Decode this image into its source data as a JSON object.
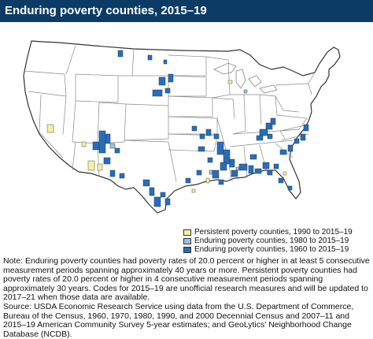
{
  "title": "Enduring poverty counties, 2015–19",
  "legend": {
    "items": [
      {
        "label": "Persistent poverty counties, 1990 to 2015–19",
        "color": "#f2f2a0"
      },
      {
        "label": "Enduring poverty counties, 1980 to 2015–19",
        "color": "#9dbfe0"
      },
      {
        "label": "Enduring poverty counties, 1960 to 2015–19",
        "color": "#2a6db5"
      }
    ]
  },
  "note": {
    "paragraph": "Note: Enduring poverty counties had poverty rates of 20.0 percent or higher in at least 5 consecutive measurement periods spanning approximately 40 years or more. Persistent poverty counties had poverty rates of 20.0 percent or higher in 4 consecutive measurement periods spanning approximately 30 years. Codes for 2015–19 are unofficial research measures and will be updated to 2017–21 when those data are available.",
    "source": "Source: USDA Economic Research Service using data from the U.S. Department of Commerce, Bureau of the Census, 1960, 1970, 1980, 1990, and 2000 Decennial Census and 2007–11 and 2015–19 American Community Survey 5-year estimates; and GeoLytics' Neighborhood Change Database (NCDB)."
  },
  "colors": {
    "title_bar": "#0c3c66",
    "land": "#ffffff",
    "border": "#8a8a8a",
    "enduring_1960": "#2a6db5",
    "enduring_1980": "#9dbfe0",
    "persistent_1990": "#f2f2a0"
  }
}
